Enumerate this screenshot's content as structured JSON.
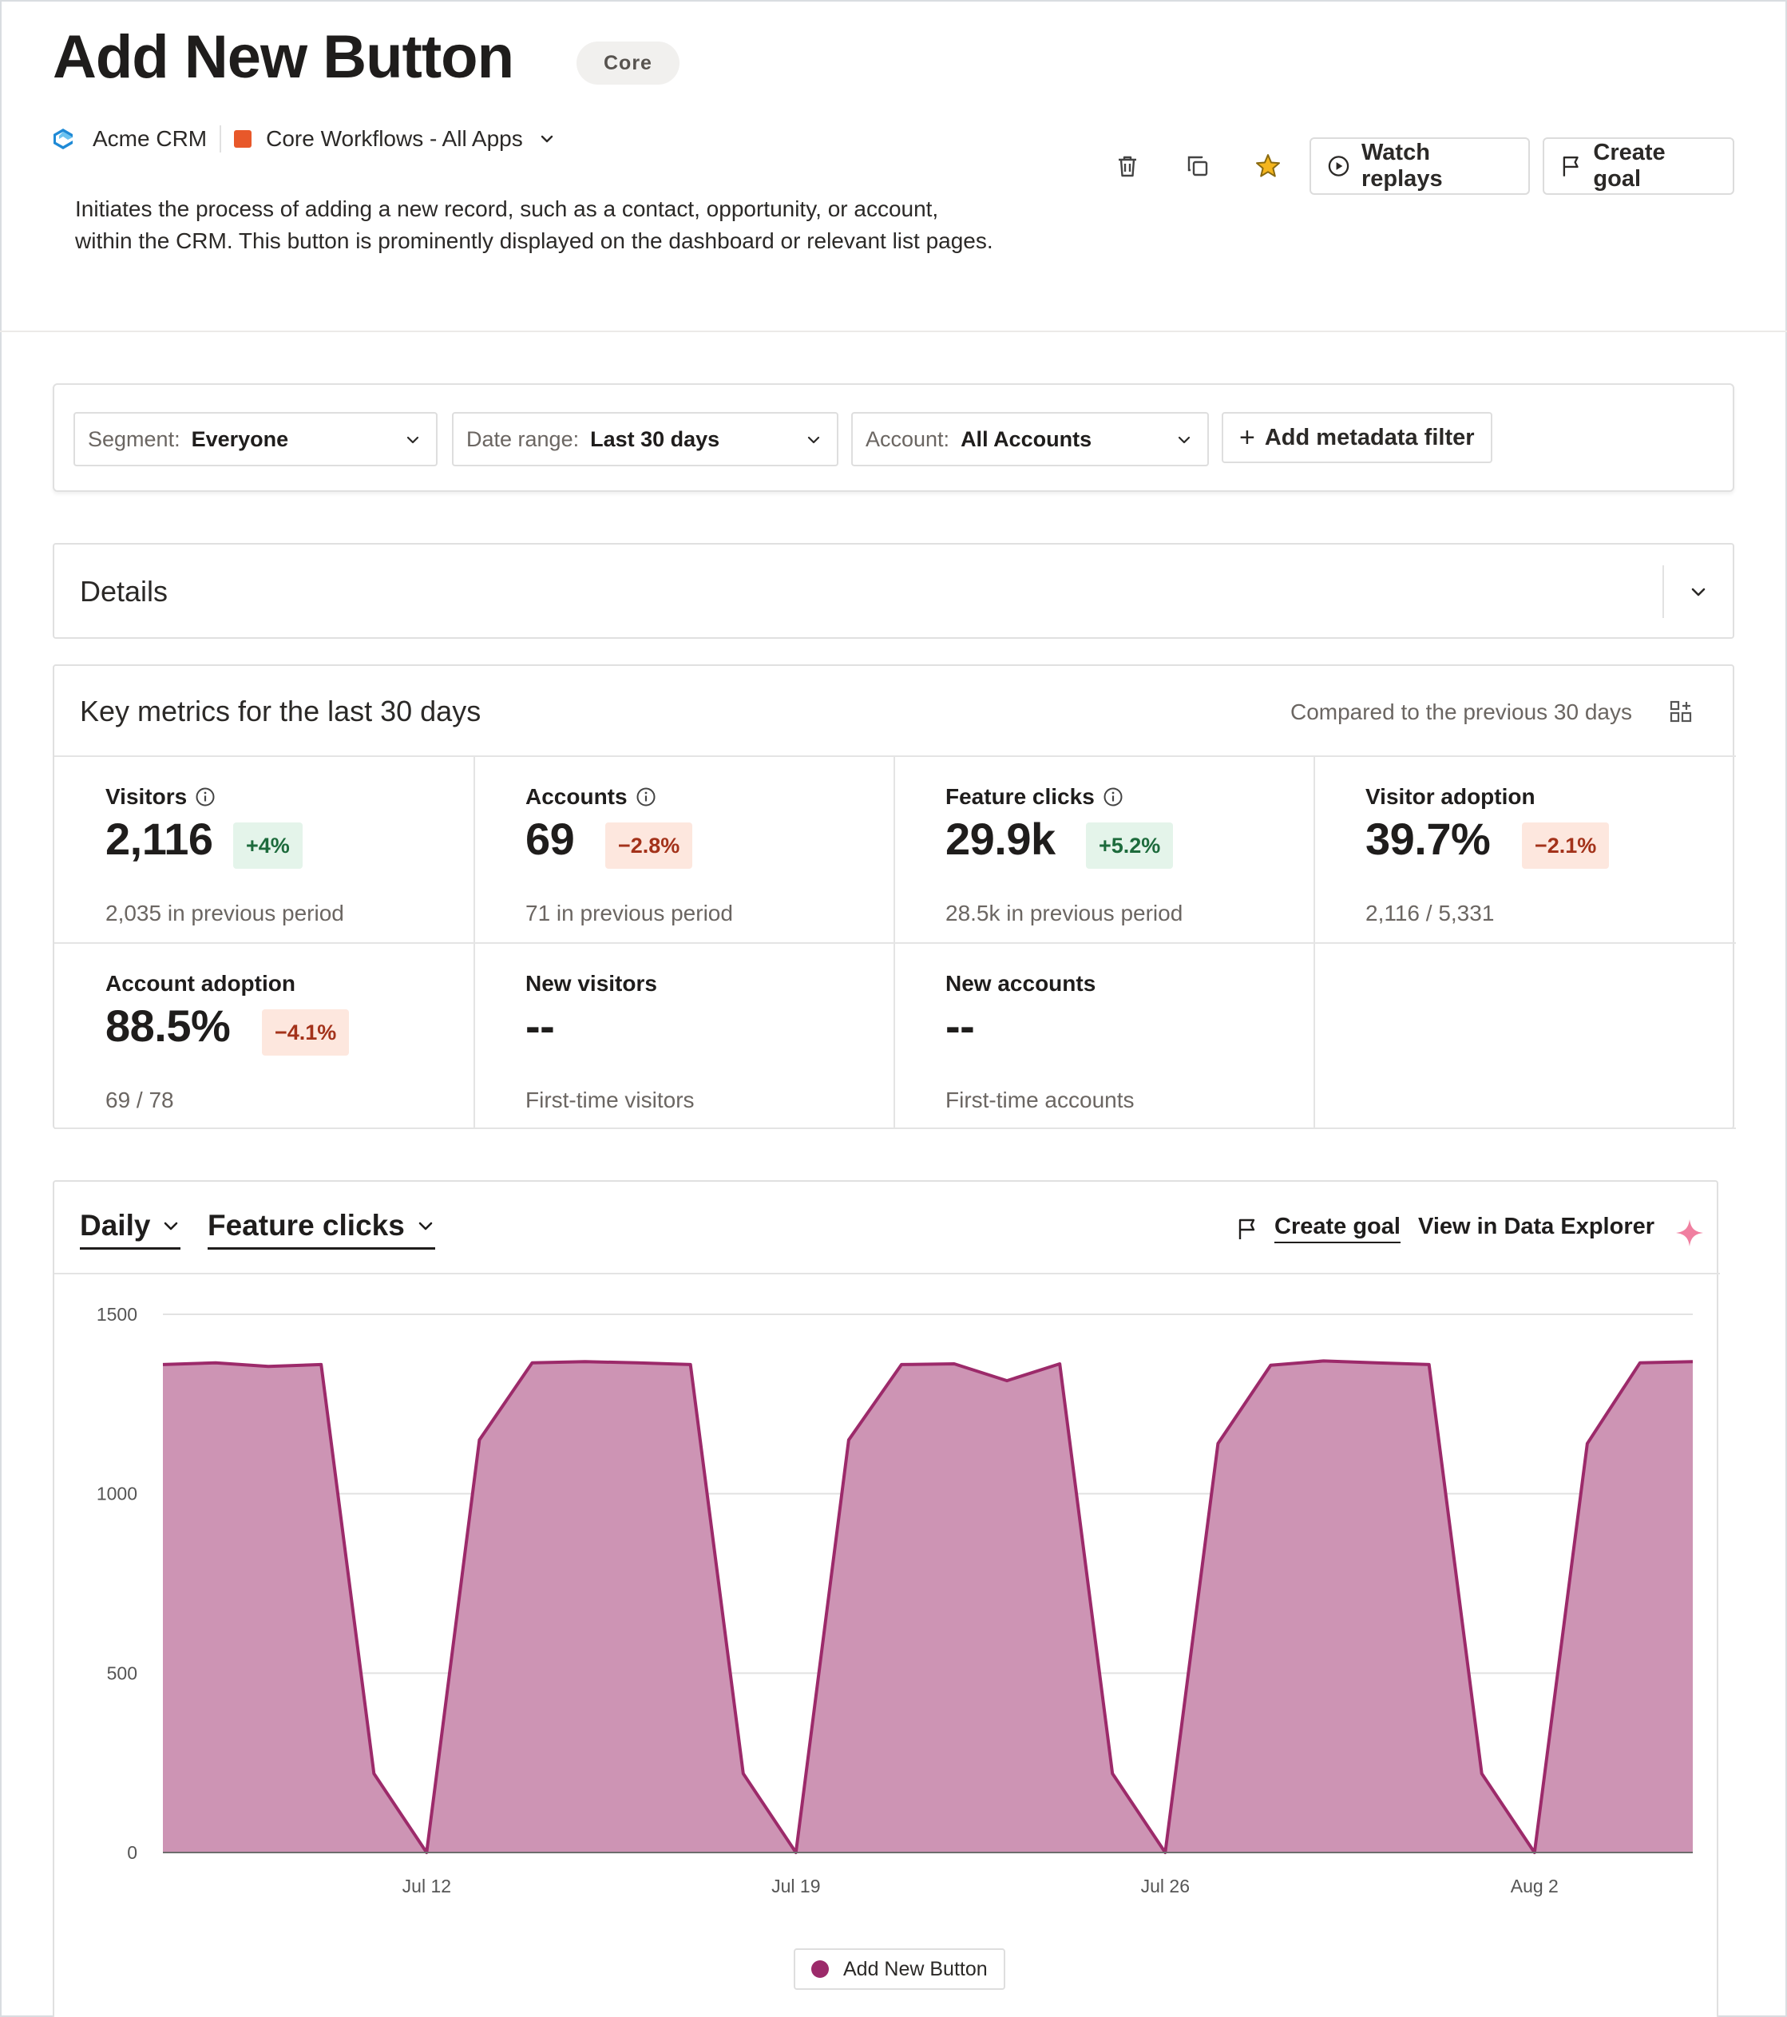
{
  "header": {
    "title": "Add New Button",
    "badge": "Core",
    "app_name": "Acme CRM",
    "app_icon": "acme-logo-icon",
    "group_name": "Core Workflows - All Apps",
    "group_color": "#e8582a",
    "description": "Initiates the process of adding a new record, such as a contact, opportunity, or account, within the CRM. This button is prominently displayed on the dashboard or relevant list pages.",
    "actions": {
      "delete_icon": "trash-icon",
      "copy_icon": "copy-icon",
      "favorite_icon": "star-icon",
      "watch_replays": "Watch replays",
      "create_goal": "Create goal"
    }
  },
  "filters": {
    "segment": {
      "label": "Segment:",
      "value": "Everyone"
    },
    "date_range": {
      "label": "Date range:",
      "value": "Last 30 days"
    },
    "account": {
      "label": "Account:",
      "value": "All Accounts"
    },
    "add_metadata": "Add metadata filter"
  },
  "details": {
    "title": "Details"
  },
  "metrics": {
    "title": "Key metrics for the last 30 days",
    "compare_text": "Compared to the previous 30 days",
    "cards": [
      {
        "label": "Visitors",
        "value": "2,116",
        "delta": "+4%",
        "trend": "up",
        "sub": "2,035 in previous period"
      },
      {
        "label": "Accounts",
        "value": "69",
        "delta": "−2.8%",
        "trend": "down",
        "sub": "71 in previous period"
      },
      {
        "label": "Feature clicks",
        "value": "29.9k",
        "delta": "+5.2%",
        "trend": "up",
        "sub": "28.5k in previous period"
      },
      {
        "label": "Visitor adoption",
        "value": "39.7%",
        "delta": "−2.1%",
        "trend": "down",
        "sub": "2,116 / 5,331"
      },
      {
        "label": "Account adoption",
        "value": "88.5%",
        "delta": "−4.1%",
        "trend": "down",
        "sub": "69 / 78"
      },
      {
        "label": "New visitors",
        "value": "--",
        "sub": "First-time visitors"
      },
      {
        "label": "New accounts",
        "value": "--",
        "sub": "First-time accounts"
      }
    ]
  },
  "chart_panel": {
    "interval": "Daily",
    "metric": "Feature clicks",
    "create_goal": "Create goal",
    "view_explorer": "View in Data Explorer",
    "ai_icon": "sparkle-icon"
  },
  "chart_data": {
    "type": "area",
    "ylim": [
      0,
      1500
    ],
    "yticks": [
      "1500",
      "1000",
      "500",
      "0"
    ],
    "xtick_labels": [
      "Jul 12",
      "Jul 19",
      "Jul 26",
      "Aug 2"
    ],
    "x": [
      "Jul 7",
      "Jul 8",
      "Jul 9",
      "Jul 10",
      "Jul 11",
      "Jul 12",
      "Jul 13",
      "Jul 14",
      "Jul 15",
      "Jul 16",
      "Jul 17",
      "Jul 18",
      "Jul 19",
      "Jul 20",
      "Jul 21",
      "Jul 22",
      "Jul 23",
      "Jul 24",
      "Jul 25",
      "Jul 26",
      "Jul 27",
      "Jul 28",
      "Jul 29",
      "Jul 30",
      "Jul 31",
      "Aug 1",
      "Aug 2",
      "Aug 3",
      "Aug 4",
      "Aug 5"
    ],
    "series": [
      {
        "name": "Add New Button",
        "color": "#9c2a6a",
        "fill": "#cd94b4",
        "values": [
          1360,
          1365,
          1355,
          1360,
          220,
          0,
          1150,
          1365,
          1368,
          1365,
          1360,
          220,
          0,
          1150,
          1360,
          1362,
          1315,
          1362,
          220,
          0,
          1140,
          1358,
          1370,
          1365,
          1360,
          220,
          0,
          1140,
          1365,
          1368
        ]
      }
    ]
  }
}
